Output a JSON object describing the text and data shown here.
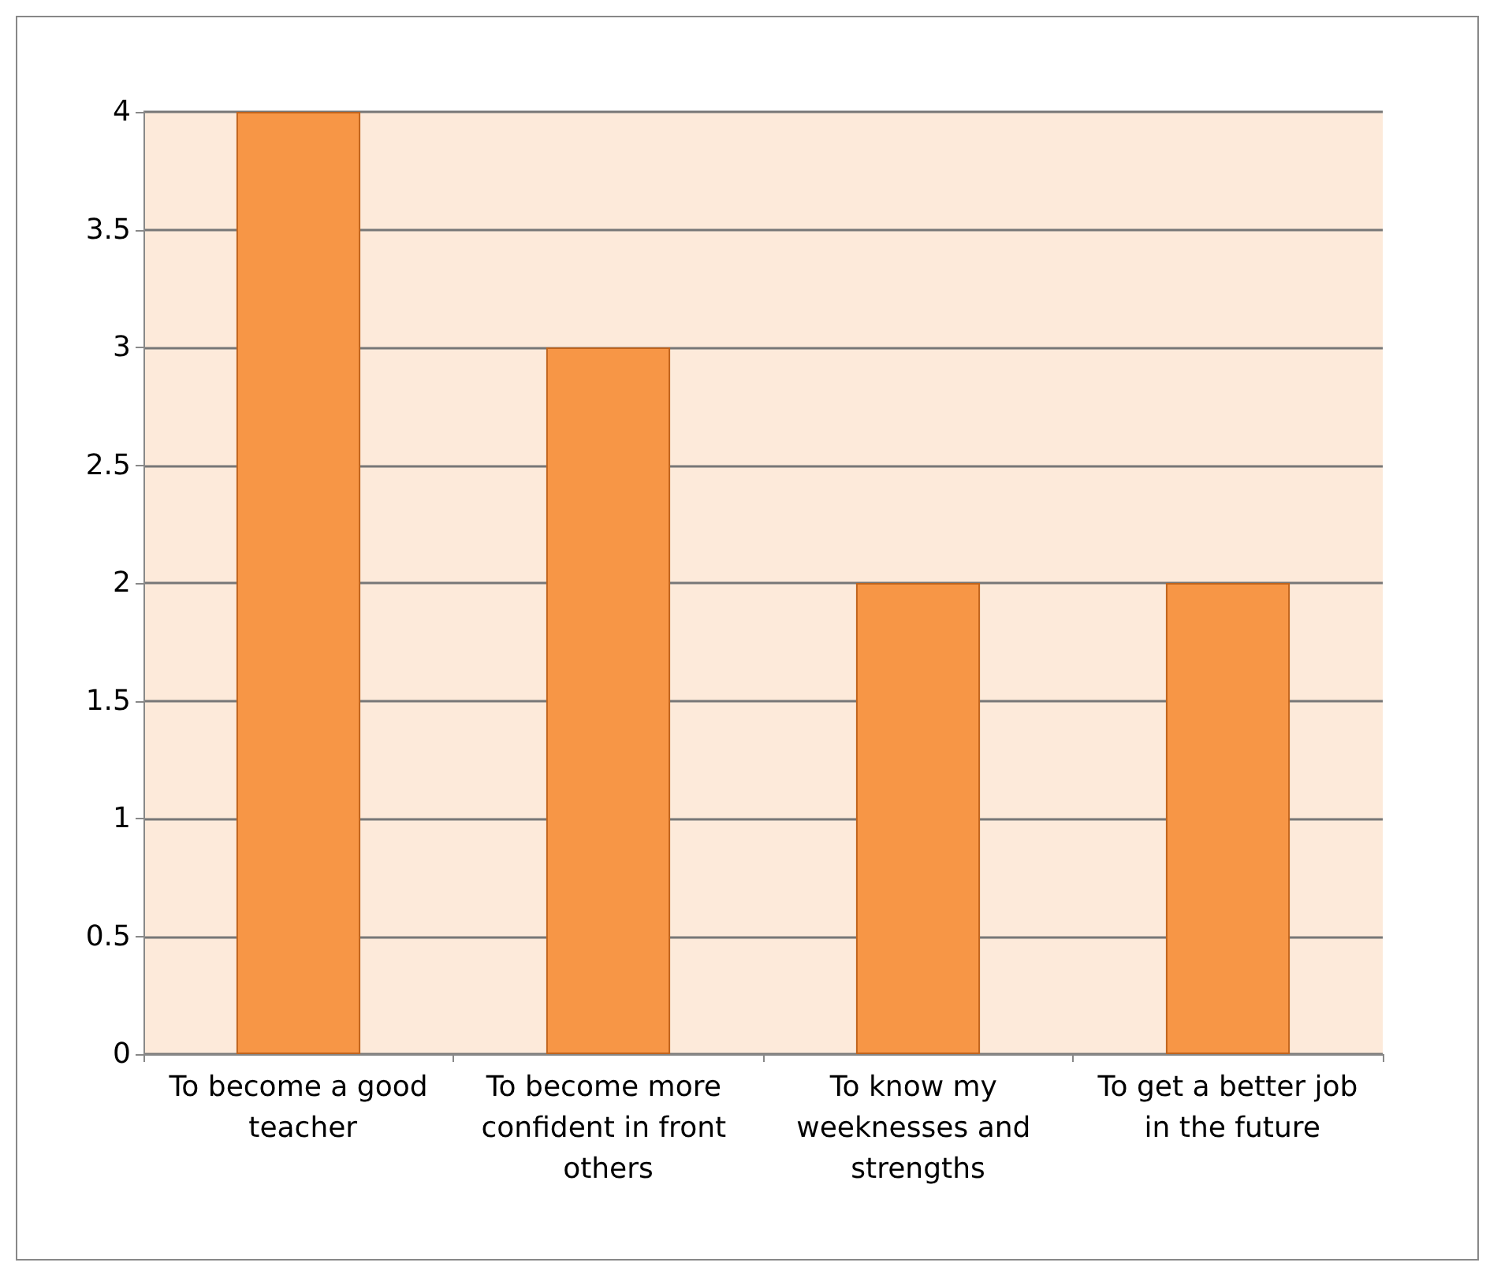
{
  "chart_data": {
    "type": "bar",
    "categories": [
      "To become a good teacher",
      "To become more confident in front others",
      "To know my weeknesses and strengths",
      "To get a better job in the future"
    ],
    "values": [
      4,
      3,
      2,
      2
    ],
    "color": "#f79646",
    "ylim": [
      0,
      4
    ],
    "yticks": [
      0,
      0.5,
      1,
      1.5,
      2,
      2.5,
      3,
      3.5,
      4
    ],
    "grid": "y"
  }
}
